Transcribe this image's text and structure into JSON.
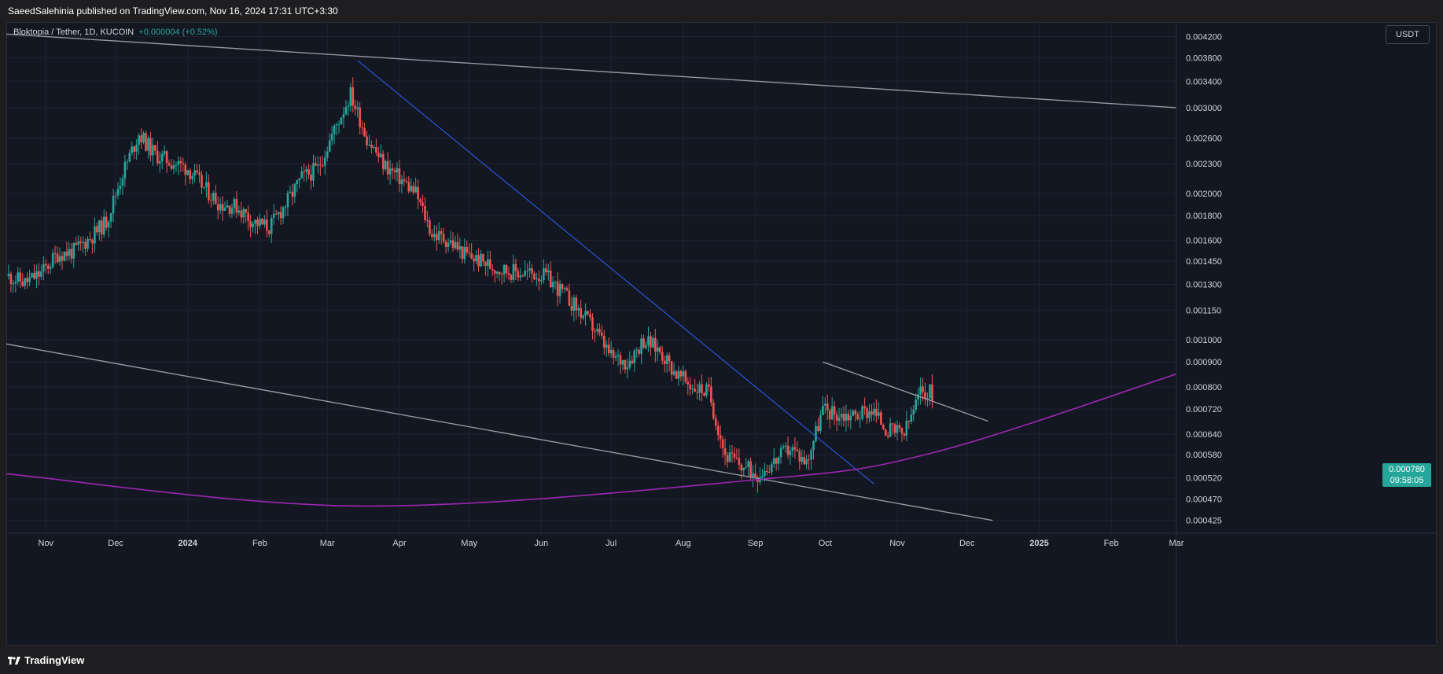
{
  "header": {
    "published_text": "SaeedSalehinia published on TradingView.com, Nov 16, 2024 17:31 UTC+3:30"
  },
  "legend": {
    "symbol": "Bloktopia / Tether, 1D, KUCOIN",
    "change": "+0.000004 (+0.52%)"
  },
  "currency_button": "USDT",
  "last_price": {
    "value": "0.000780",
    "countdown": "09:58:05"
  },
  "footer": {
    "brand": "TradingView"
  },
  "colors": {
    "up": "#26a69a",
    "down": "#ef5350",
    "background": "#131722",
    "grey_line": "#9598a1",
    "blue_line": "#2962ff",
    "purple_curve": "#9c27b0"
  },
  "chart_data": {
    "type": "candlestick",
    "title": "",
    "price_scale": "log",
    "y_ticks": [
      "0.004200",
      "0.003800",
      "0.003400",
      "0.003000",
      "0.002600",
      "0.002300",
      "0.002000",
      "0.001800",
      "0.001600",
      "0.001450",
      "0.001300",
      "0.001150",
      "0.001000",
      "0.000900",
      "0.000800",
      "0.000720",
      "0.000640",
      "0.000580",
      "0.000520",
      "0.000470",
      "0.000425"
    ],
    "x_ticks": [
      "Nov",
      "Dec",
      "2024",
      "Feb",
      "Mar",
      "Apr",
      "May",
      "Jun",
      "Jul",
      "Aug",
      "Sep",
      "Oct",
      "Nov",
      "Dec",
      "2025",
      "Feb",
      "Mar"
    ],
    "x_bold": [
      "2024",
      "2025"
    ],
    "date_range": [
      "2023-10-15",
      "2025-03-01"
    ],
    "ylim": [
      0.0004,
      0.0045
    ],
    "closes": [
      [
        "2023-10-16",
        0.00135
      ],
      [
        "2023-10-23",
        0.00131
      ],
      [
        "2023-10-30",
        0.00137
      ],
      [
        "2023-11-06",
        0.0015
      ],
      [
        "2023-11-13",
        0.00152
      ],
      [
        "2023-11-20",
        0.00162
      ],
      [
        "2023-11-27",
        0.00175
      ],
      [
        "2023-12-04",
        0.0022
      ],
      [
        "2023-12-11",
        0.00265
      ],
      [
        "2023-12-18",
        0.0024
      ],
      [
        "2023-12-25",
        0.00232
      ],
      [
        "2024-01-01",
        0.00225
      ],
      [
        "2024-01-08",
        0.00205
      ],
      [
        "2024-01-15",
        0.0019
      ],
      [
        "2024-01-22",
        0.00188
      ],
      [
        "2024-01-29",
        0.00175
      ],
      [
        "2024-02-05",
        0.0017
      ],
      [
        "2024-02-12",
        0.0019
      ],
      [
        "2024-02-19",
        0.00215
      ],
      [
        "2024-02-26",
        0.00225
      ],
      [
        "2024-03-04",
        0.0027
      ],
      [
        "2024-03-11",
        0.0032
      ],
      [
        "2024-03-18",
        0.0026
      ],
      [
        "2024-03-25",
        0.0023
      ],
      [
        "2024-04-01",
        0.00215
      ],
      [
        "2024-04-08",
        0.002
      ],
      [
        "2024-04-15",
        0.00165
      ],
      [
        "2024-04-22",
        0.0016
      ],
      [
        "2024-04-29",
        0.0015
      ],
      [
        "2024-05-06",
        0.00145
      ],
      [
        "2024-05-13",
        0.0014
      ],
      [
        "2024-05-20",
        0.00138
      ],
      [
        "2024-05-27",
        0.00137
      ],
      [
        "2024-06-03",
        0.00135
      ],
      [
        "2024-06-10",
        0.00125
      ],
      [
        "2024-06-17",
        0.00115
      ],
      [
        "2024-06-24",
        0.00105
      ],
      [
        "2024-07-01",
        0.00092
      ],
      [
        "2024-07-08",
        0.0009
      ],
      [
        "2024-07-15",
        0.001
      ],
      [
        "2024-07-22",
        0.00095
      ],
      [
        "2024-07-29",
        0.00085
      ],
      [
        "2024-08-05",
        0.0008
      ],
      [
        "2024-08-12",
        0.00078
      ],
      [
        "2024-08-19",
        0.00058
      ],
      [
        "2024-08-26",
        0.00055
      ],
      [
        "2024-09-02",
        0.00053
      ],
      [
        "2024-09-09",
        0.00056
      ],
      [
        "2024-09-16",
        0.0006
      ],
      [
        "2024-09-23",
        0.00056
      ],
      [
        "2024-09-30",
        0.00072
      ],
      [
        "2024-10-07",
        0.0007
      ],
      [
        "2024-10-14",
        0.0007
      ],
      [
        "2024-10-21",
        0.00072
      ],
      [
        "2024-10-28",
        0.00065
      ],
      [
        "2024-11-04",
        0.00064
      ],
      [
        "2024-11-11",
        0.00078
      ]
    ],
    "trendlines": [
      {
        "name": "upper-channel-line",
        "color": "grey",
        "from": [
          "2023-10-15",
          0.00425
        ],
        "to": [
          "2025-03-01",
          0.003
        ]
      },
      {
        "name": "lower-channel-line",
        "color": "grey",
        "from": [
          "2023-10-15",
          0.00098
        ],
        "to": [
          "2024-12-12",
          0.000425
        ]
      },
      {
        "name": "descending-blue-trendline",
        "color": "blue",
        "from": [
          "2024-03-14",
          0.00375
        ],
        "to": [
          "2024-10-22",
          0.000505
        ]
      },
      {
        "name": "recent-resistance-line",
        "color": "grey",
        "from": [
          "2024-09-30",
          0.0009
        ],
        "to": [
          "2024-12-10",
          0.00068
        ]
      }
    ],
    "curve": {
      "name": "purple-support-curve",
      "color": "purple",
      "points": [
        [
          "2023-10-15",
          0.00053
        ],
        [
          "2024-03-15",
          0.000455
        ],
        [
          "2024-09-01",
          0.000515
        ],
        [
          "2024-11-16",
          0.000585
        ],
        [
          "2025-03-01",
          0.00085
        ]
      ]
    }
  }
}
